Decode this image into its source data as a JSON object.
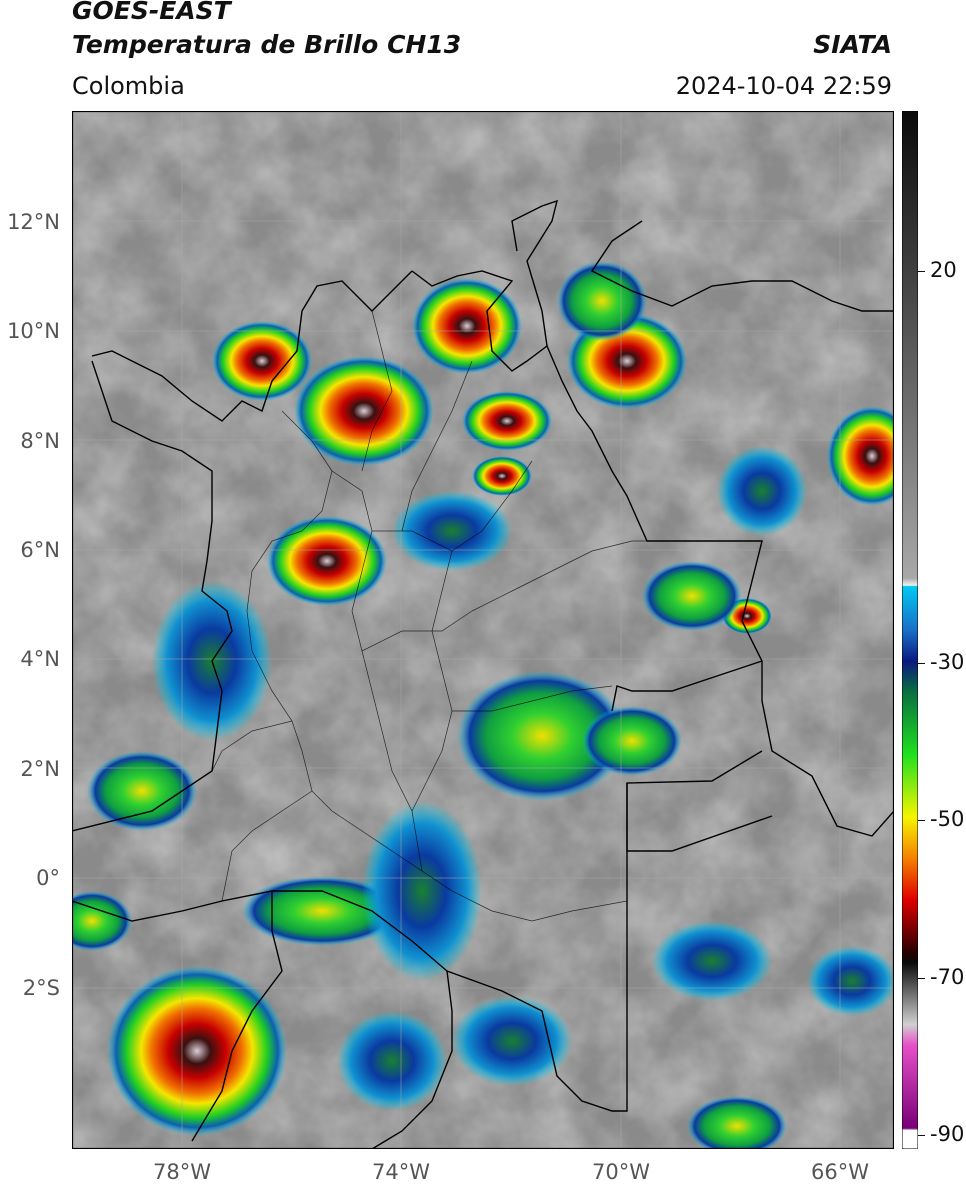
{
  "header": {
    "line1": "GOES-EAST",
    "line2": "Temperatura de Brillo CH13",
    "brand": "SIATA",
    "region": "Colombia",
    "timestamp": "2024-10-04 22:59"
  },
  "map": {
    "lat_labels": [
      "12°N",
      "10°N",
      "8°N",
      "6°N",
      "4°N",
      "2°N",
      "0°",
      "2°S"
    ],
    "lon_labels": [
      "78°W",
      "74°W",
      "70°W",
      "66°W"
    ]
  },
  "colorbar": {
    "labels": [
      "20",
      "-30",
      "-50",
      "-70",
      "-90"
    ],
    "colors": {
      "black": "#0a0a0a",
      "gray": "#7a7a7a",
      "light": "#f0f0f0",
      "cyan": "#00c8f0",
      "blue": "#0a2a9a",
      "green": "#19e619",
      "yellow": "#f5f500",
      "red": "#e60000",
      "dark": "#3a0000",
      "pink": "#e650c8",
      "purple": "#780078"
    }
  }
}
